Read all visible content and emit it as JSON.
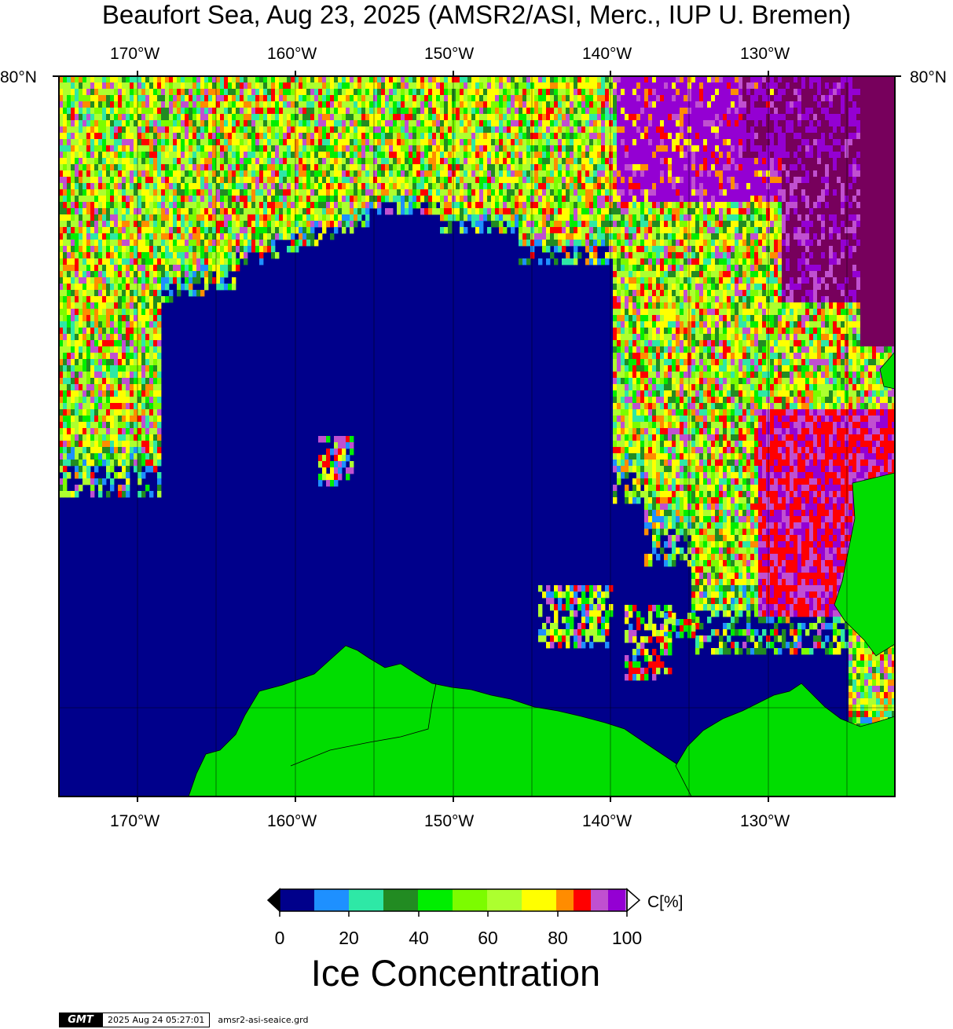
{
  "title": "Beaufort Sea, Aug 23, 2025 (AMSR2/ASI, Merc., IUP U. Bremen)",
  "lon_labels": [
    "170°W",
    "160°W",
    "150°W",
    "140°W",
    "130°W"
  ],
  "lat_label": "80°N",
  "colorbar": {
    "title": "Ice Concentration",
    "unit": "C[%]",
    "ticks": [
      "0",
      "20",
      "40",
      "60",
      "80",
      "100"
    ],
    "colors": [
      "#00008b",
      "#1e90ff",
      "#2ee8a6",
      "#228b22",
      "#00ee00",
      "#7cfc00",
      "#adff2f",
      "#ffff00",
      "#ff8c00",
      "#ff0000",
      "#c050d0",
      "#9400d3"
    ],
    "under_color": "#000000",
    "over_color": "#ffffff"
  },
  "colors": {
    "ocean": "#00008b",
    "land": "#00dd00",
    "pack_ice_dense": "#77005c"
  },
  "footer": {
    "logo": "GMT",
    "timestamp": "2025 Aug 24 05:27:01",
    "file": "amsr2-asi-seaice.grd"
  }
}
